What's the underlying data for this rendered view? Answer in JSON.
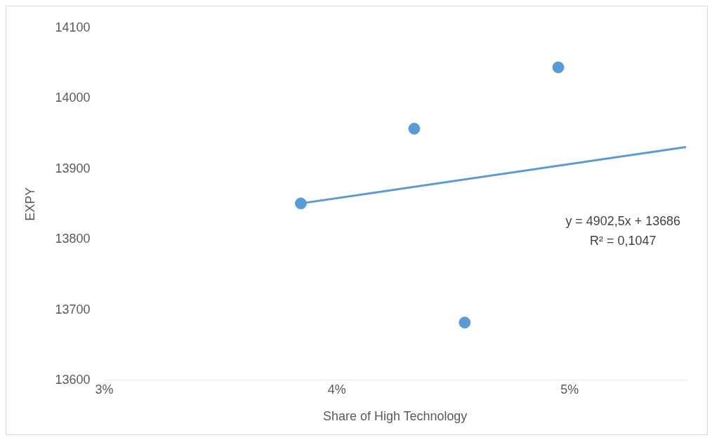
{
  "chart_data": {
    "type": "scatter",
    "xlabel": "Share of High Technology",
    "ylabel": "EXPY",
    "series": [
      {
        "type": "scatter",
        "marker": "circle",
        "color": "#5b9bd5",
        "x": [
          0.03845,
          0.04332,
          0.04549,
          0.04951
        ],
        "values": [
          13851,
          13957,
          13682,
          14044
        ]
      },
      {
        "type": "line",
        "color": "#5b9bd5",
        "x": [
          0.03845,
          0.055
        ],
        "values": [
          13851,
          13931
        ]
      }
    ],
    "xlim": [
      0.03,
      0.055
    ],
    "xticks": [
      {
        "value": 0.03,
        "label": "3%"
      },
      {
        "value": 0.04,
        "label": "4%"
      },
      {
        "value": 0.05,
        "label": "5%"
      }
    ],
    "ylim": [
      13600,
      14100
    ],
    "yticks": [
      13600,
      13700,
      13800,
      13900,
      14000,
      14100
    ],
    "annotations": [
      "y = 4902,5x + 13686",
      "R² = 0,1047"
    ],
    "grid": false,
    "legend": false,
    "line_style": "solid"
  }
}
